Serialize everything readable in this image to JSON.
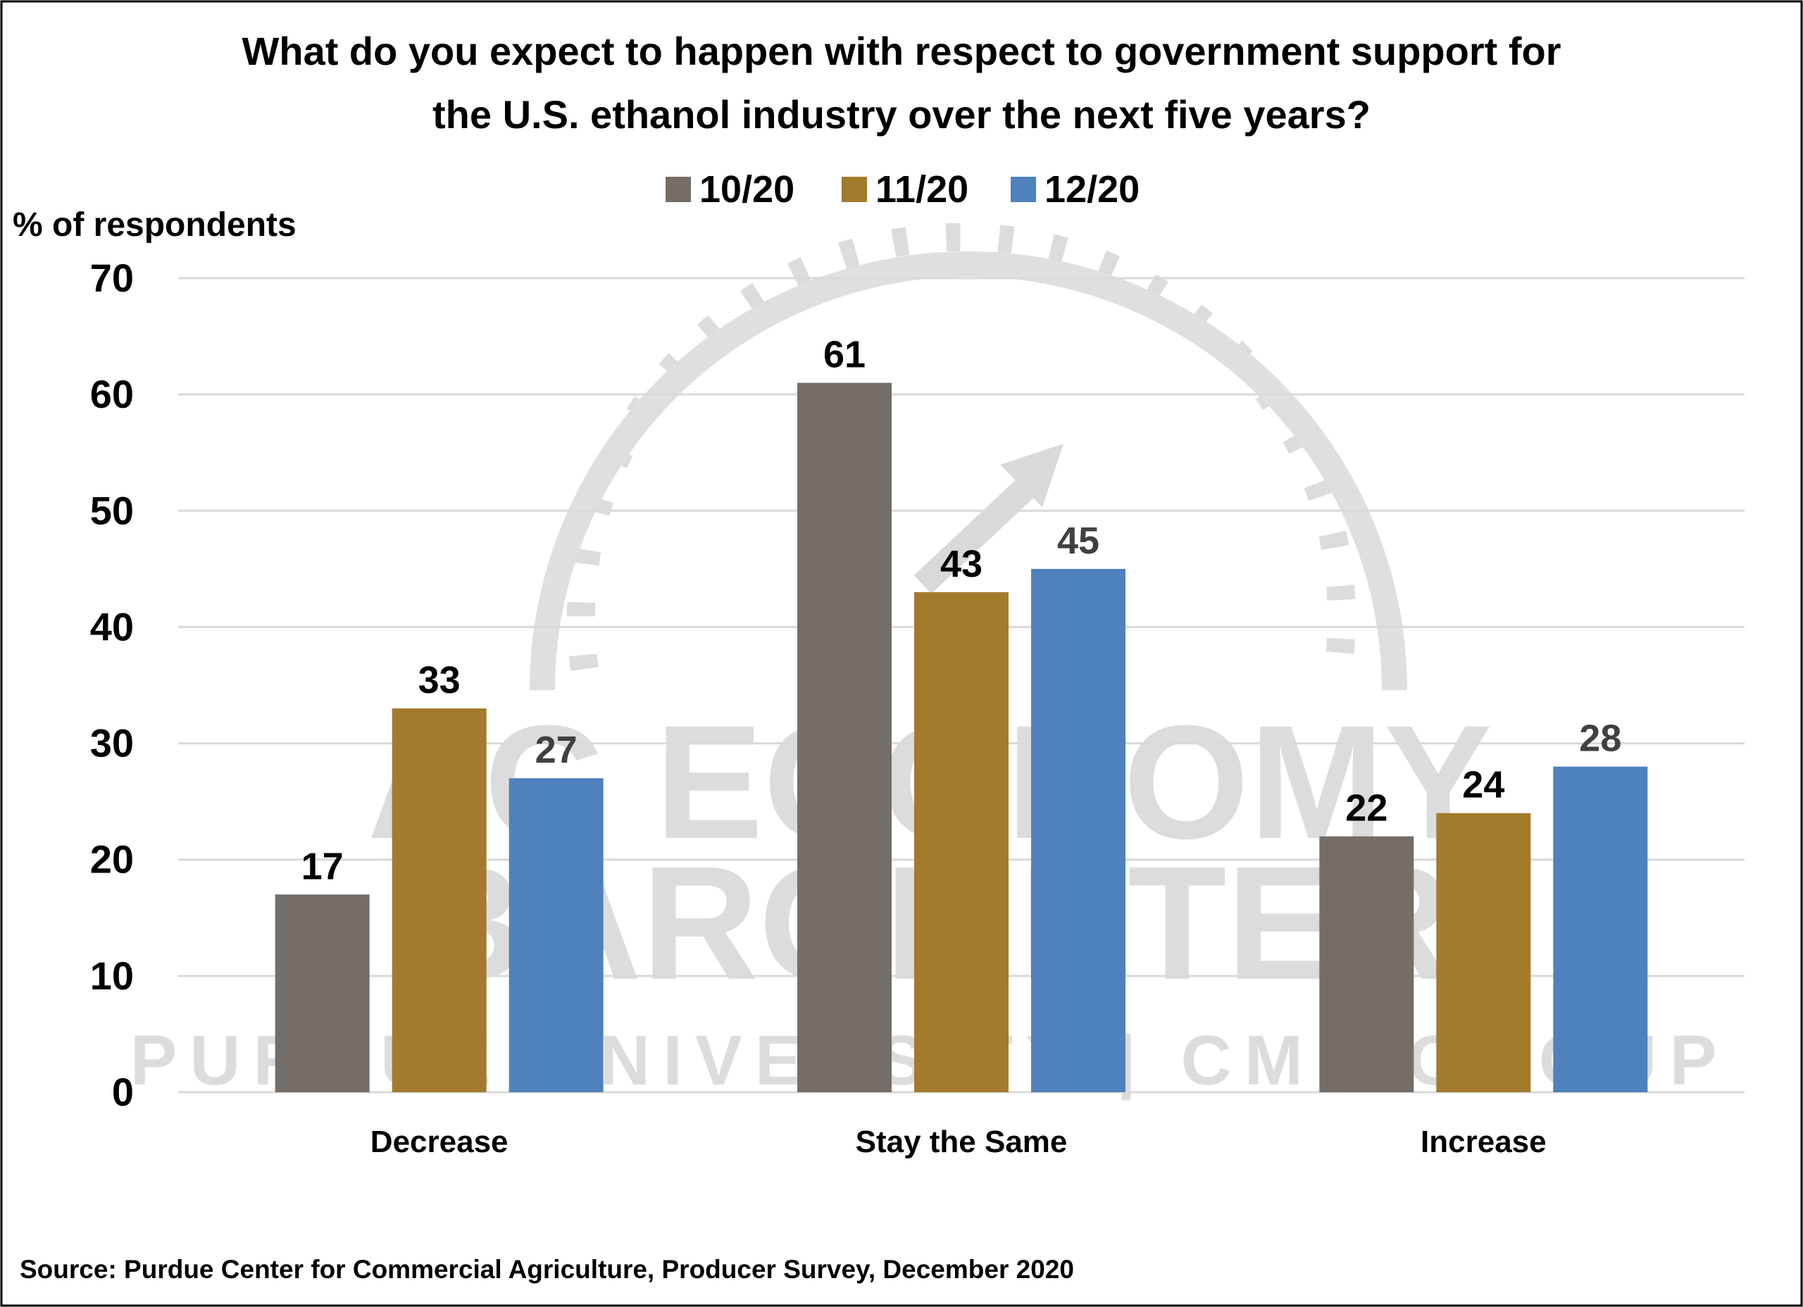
{
  "chart_data": {
    "type": "bar",
    "title": [
      "What do you expect to happen with respect to government support for",
      "the U.S. ethanol industry over the next five years?"
    ],
    "ylabel": "% of respondents",
    "xlabel": "",
    "ylim": [
      0,
      70
    ],
    "yticks": [
      0,
      10,
      20,
      30,
      40,
      50,
      60,
      70
    ],
    "grid": true,
    "legend_placement": "top",
    "categories": [
      "Decrease",
      "Stay the Same",
      "Increase"
    ],
    "series": [
      {
        "name": "10/20",
        "color": "#756D67",
        "label_color": "#000000",
        "values": [
          17,
          61,
          22
        ]
      },
      {
        "name": "11/20",
        "color": "#A47A2C",
        "label_color": "#000000",
        "values": [
          33,
          43,
          24
        ]
      },
      {
        "name": "12/20",
        "color": "#4F81BD",
        "label_color": "#404040",
        "values": [
          27,
          45,
          28
        ]
      }
    ],
    "source": "Source: Purdue Center for Commercial Agriculture, Producer Survey, December 2020",
    "watermark": [
      "AG ECONOMY",
      "BAROMETER",
      "PURDUE UNIVERSITY | CME GROUP"
    ]
  }
}
